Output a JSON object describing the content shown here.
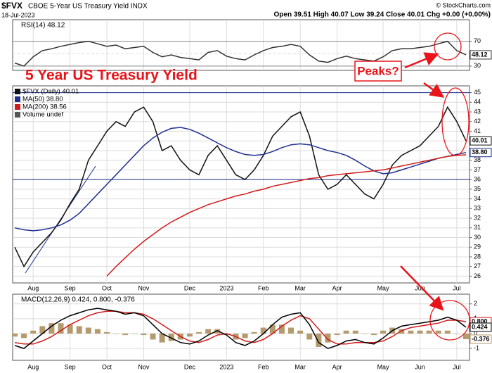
{
  "header": {
    "symbol": "$FVX",
    "name": "CBOE 5-Year US Treasury Yield INDX",
    "date": "18-Jul-2023",
    "quote": "Open 39.51 High 40.07 Low 39.24 Close 40.01 Chg +0.00 (+0.00%)",
    "credit": "© StockCharts.com"
  },
  "annotations": [
    "5 Year US Treasury Yield",
    "Peaks?"
  ],
  "chart_data": [
    {
      "type": "line",
      "panel": "price",
      "categories": [
        null,
        null,
        "Aug",
        null,
        null,
        null,
        "Sep",
        null,
        null,
        null,
        "Oct",
        null,
        null,
        null,
        "Nov",
        null,
        null,
        null,
        null,
        "Dec",
        null,
        null,
        null,
        "2023",
        null,
        null,
        null,
        "Feb",
        null,
        null,
        null,
        "Mar",
        null,
        null,
        null,
        "Apr",
        null,
        null,
        null,
        null,
        "May",
        null,
        null,
        null,
        "Jun",
        null,
        null,
        null,
        "Jul",
        null
      ],
      "ylim": [
        25.3,
        45.7
      ],
      "yticks": [
        26,
        27,
        28,
        29,
        30,
        31,
        32,
        33,
        34,
        35,
        36,
        37,
        38,
        39,
        40,
        41,
        42,
        43,
        44,
        45
      ],
      "grid": true,
      "reference_lines": [
        45,
        36
      ],
      "legend_extra": "Volume undef",
      "series": [
        {
          "name": "$FVX (Daily) 40.01",
          "color": "#111111",
          "last_label": "40.01",
          "values": [
            29.0,
            27.0,
            28.5,
            29.5,
            30.5,
            31.8,
            33.5,
            35.0,
            38.0,
            39.5,
            41.0,
            42.0,
            41.5,
            43.0,
            43.5,
            42.0,
            39.0,
            39.5,
            38.0,
            37.0,
            36.5,
            38.5,
            39.5,
            38.0,
            36.5,
            36.0,
            37.0,
            38.5,
            40.5,
            41.5,
            42.5,
            43.0,
            40.5,
            36.5,
            35.0,
            35.5,
            36.5,
            35.5,
            34.5,
            34.0,
            35.5,
            37.5,
            38.5,
            39.0,
            39.5,
            40.5,
            41.5,
            43.5,
            42.0,
            40.01
          ]
        },
        {
          "name": "MA(50) 38.80",
          "color": "#1f2f8f",
          "last_label": "38.80",
          "values": [
            31.0,
            30.8,
            30.7,
            30.8,
            31.0,
            31.3,
            31.8,
            32.5,
            33.5,
            34.5,
            35.5,
            36.5,
            37.5,
            38.5,
            39.5,
            40.3,
            40.9,
            41.3,
            41.4,
            41.2,
            40.8,
            40.3,
            39.8,
            39.3,
            38.9,
            38.6,
            38.5,
            38.6,
            38.9,
            39.3,
            39.6,
            39.7,
            39.6,
            39.3,
            39.0,
            38.8,
            38.5,
            38.0,
            37.4,
            36.9,
            36.6,
            36.7,
            37.0,
            37.3,
            37.6,
            37.9,
            38.2,
            38.4,
            38.6,
            38.8
          ]
        },
        {
          "name": "MA(200) 38.56",
          "color": "#d21a1a",
          "values": [
            null,
            null,
            null,
            null,
            null,
            null,
            null,
            null,
            null,
            null,
            26.0,
            27.0,
            27.9,
            28.8,
            29.6,
            30.3,
            31.0,
            31.6,
            32.1,
            32.6,
            33.0,
            33.4,
            33.7,
            34.0,
            34.3,
            34.5,
            34.8,
            35.0,
            35.3,
            35.5,
            35.7,
            35.9,
            36.1,
            36.2,
            36.4,
            36.5,
            36.6,
            36.7,
            36.8,
            36.9,
            37.0,
            37.2,
            37.4,
            37.6,
            37.8,
            38.0,
            38.2,
            38.4,
            38.5,
            38.56
          ]
        }
      ]
    },
    {
      "type": "line",
      "panel": "rsi",
      "title": "RSI(14) 48.12",
      "ylim": [
        23,
        105
      ],
      "yticks": [
        30,
        50,
        70
      ],
      "grid": true,
      "series": [
        {
          "color": "#333333",
          "last_label": "48.12",
          "values": [
            35,
            30,
            45,
            55,
            58,
            62,
            65,
            68,
            70,
            66,
            62,
            64,
            58,
            60,
            62,
            52,
            45,
            48,
            44,
            42,
            40,
            52,
            55,
            46,
            42,
            40,
            48,
            55,
            60,
            62,
            65,
            62,
            48,
            38,
            36,
            42,
            46,
            42,
            40,
            38,
            45,
            55,
            58,
            58,
            60,
            62,
            66,
            70,
            55,
            48.12
          ]
        }
      ]
    },
    {
      "type": "line",
      "panel": "macd",
      "title": "MACD(12,26,9) 0.424, 0.800, -0.376",
      "ylim": [
        -1.8,
        2.65
      ],
      "yticks": [
        -1,
        0,
        1,
        2
      ],
      "grid": true,
      "series": [
        {
          "type": "bar",
          "color": "#b49a6c",
          "last_label": "-0.376",
          "values": [
            -0.2,
            -0.3,
            0.2,
            0.5,
            0.7,
            0.7,
            0.6,
            0.5,
            0.4,
            0.3,
            0.1,
            0,
            -0.1,
            0,
            -0.1,
            -0.4,
            -0.6,
            -0.5,
            -0.4,
            -0.2,
            0.1,
            0.3,
            0.3,
            -0.1,
            -0.4,
            -0.3,
            0.1,
            0.4,
            0.6,
            0.6,
            0.4,
            0.2,
            -0.4,
            -0.9,
            -0.6,
            -0.1,
            0.2,
            0.2,
            0,
            -0.1,
            0.2,
            0.4,
            0.3,
            0.2,
            0.2,
            0.2,
            0.2,
            0.2,
            0,
            -0.376
          ]
        },
        {
          "color": "#d21a1a",
          "last_label": "0.800",
          "values": [
            -0.6,
            -0.7,
            -0.7,
            -0.5,
            -0.2,
            0.2,
            0.6,
            0.9,
            1.2,
            1.4,
            1.5,
            1.5,
            1.4,
            1.4,
            1.3,
            1.0,
            0.6,
            0.2,
            -0.2,
            -0.5,
            -0.6,
            -0.4,
            -0.1,
            0,
            -0.2,
            -0.5,
            -0.6,
            -0.4,
            0,
            0.5,
            0.9,
            1.2,
            1.0,
            0.3,
            -0.4,
            -0.7,
            -0.7,
            -0.6,
            -0.6,
            -0.6,
            -0.5,
            -0.2,
            0.2,
            0.4,
            0.5,
            0.6,
            0.7,
            0.9,
            0.9,
            0.8
          ]
        },
        {
          "color": "#000000",
          "last_label": "0.424",
          "values": [
            -0.8,
            -1.0,
            -0.5,
            0,
            0.5,
            0.9,
            1.2,
            1.4,
            1.6,
            1.7,
            1.6,
            1.5,
            1.3,
            1.4,
            1.2,
            0.6,
            0,
            -0.3,
            -0.6,
            -0.7,
            -0.5,
            -0.1,
            0.2,
            -0.1,
            -0.6,
            -0.8,
            -0.5,
            0,
            0.6,
            1.1,
            1.3,
            1.4,
            0.6,
            -0.6,
            -1.0,
            -0.8,
            -0.5,
            -0.4,
            -0.6,
            -0.7,
            -0.3,
            0.2,
            0.5,
            0.6,
            0.7,
            0.8,
            0.9,
            1.1,
            0.9,
            0.424
          ]
        }
      ]
    }
  ]
}
